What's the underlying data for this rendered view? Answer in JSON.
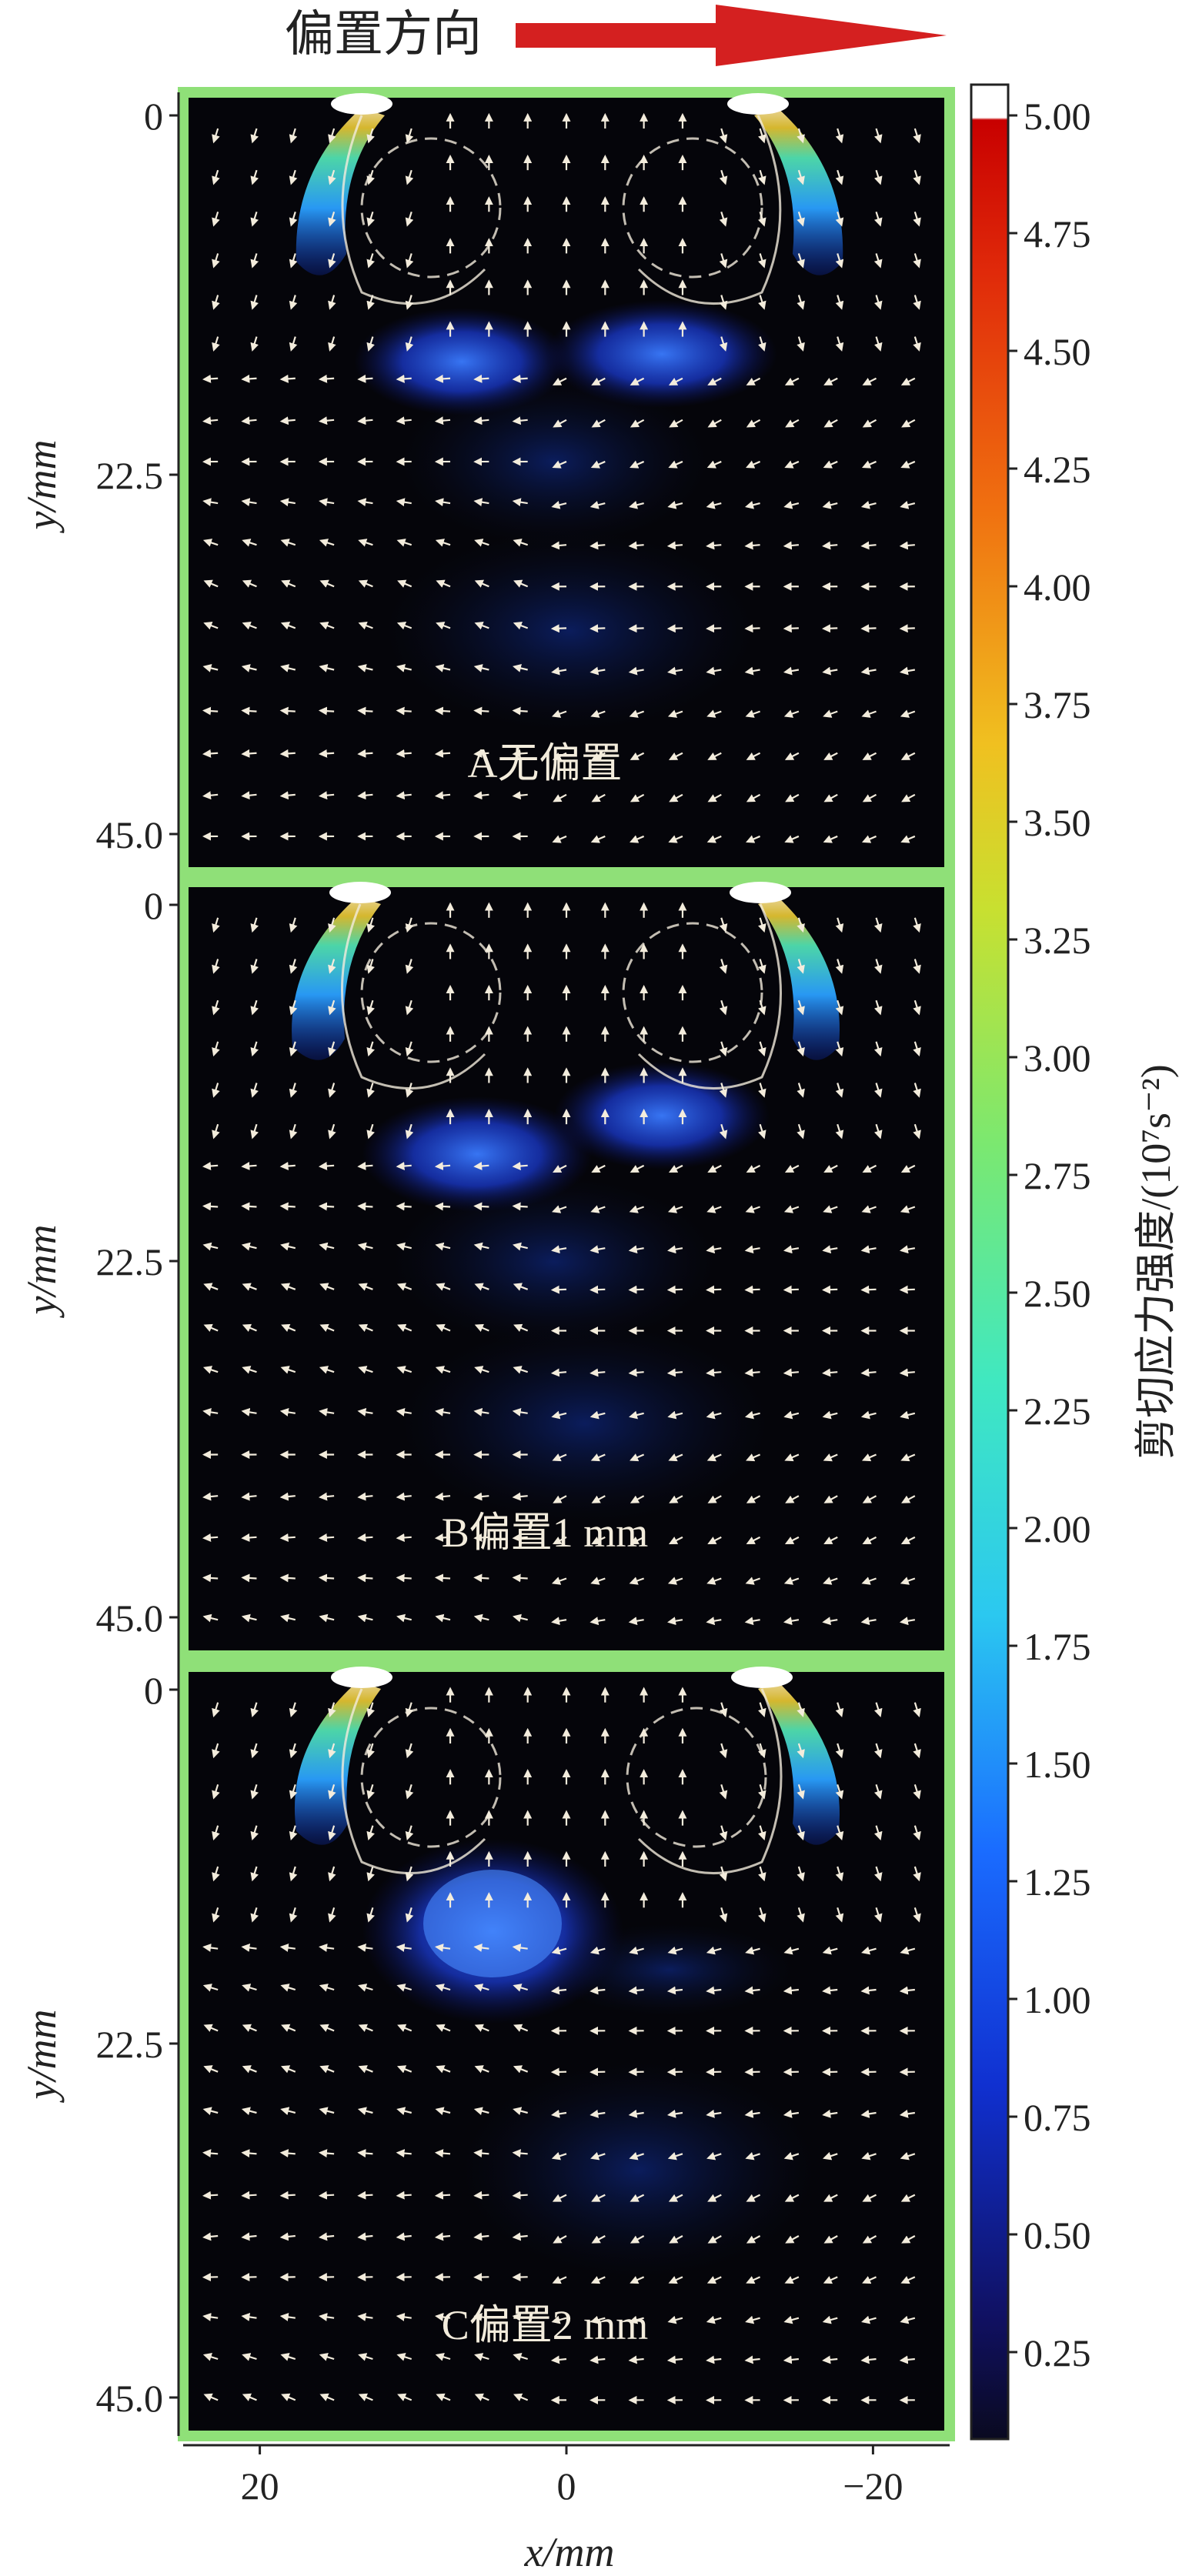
{
  "header": {
    "offset_direction_label": "偏置方向",
    "arrow_color": "#d42020"
  },
  "colors": {
    "panel_border": "#8fe078",
    "panel_background": "#05050a",
    "vector_arrow": "#f3ecdc",
    "colorbar_top": "#ffffff",
    "colorbar_high": "#d00000",
    "colorbar_low": "#0a0a20"
  },
  "chart_data": {
    "type": "heatmap",
    "description_type": "shear-stress contour with velocity vector field, three stacked panels",
    "xlabel": "x/mm",
    "ylabel": "y/mm",
    "x_ticks": [
      "20",
      "0",
      "−20"
    ],
    "x_tick_values": [
      20,
      0,
      -20
    ],
    "xlim": [
      25,
      -25
    ],
    "y_ticks": [
      "0",
      "22.5",
      "45.0"
    ],
    "y_tick_values": [
      0,
      22.5,
      45.0
    ],
    "ylim": [
      0,
      45
    ],
    "panels": [
      {
        "label": "A无偏置",
        "offset_mm": 0
      },
      {
        "label": "B偏置1 mm",
        "offset_mm": 1
      },
      {
        "label": "C偏置2 mm",
        "offset_mm": 2
      }
    ],
    "colorbar": {
      "label": "剪切应力强度/(10⁷s⁻²)",
      "ticks": [
        "5.00",
        "4.75",
        "4.50",
        "4.25",
        "4.00",
        "3.75",
        "3.50",
        "3.25",
        "3.00",
        "2.75",
        "2.50",
        "2.25",
        "2.00",
        "1.75",
        "1.50",
        "1.25",
        "1.00",
        "0.75",
        "0.50",
        "0.25"
      ],
      "tick_values": [
        5.0,
        4.75,
        4.5,
        4.25,
        4.0,
        3.75,
        3.5,
        3.25,
        3.0,
        2.75,
        2.5,
        2.25,
        2.0,
        1.75,
        1.5,
        1.25,
        1.0,
        0.75,
        0.5,
        0.25
      ],
      "range": [
        0,
        5.0
      ],
      "colormap": "jet"
    }
  }
}
